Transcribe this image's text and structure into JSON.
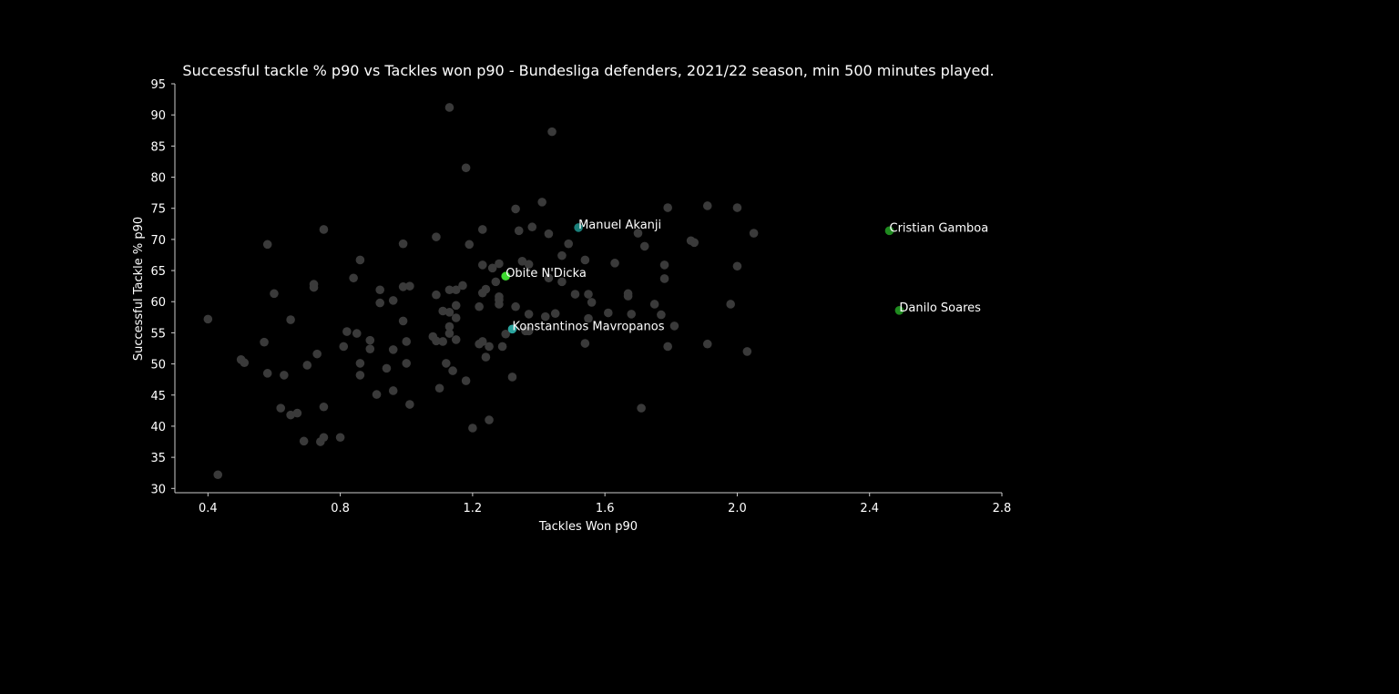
{
  "chart_data": {
    "type": "scatter",
    "title": "Successful tackle % p90 vs Tackles won p90 - Bundesliga defenders, 2021/22 season, min 500 minutes played.",
    "xlabel": "Tackles Won p90",
    "ylabel": "Successful Tackle % p90",
    "xlim": [
      0.3,
      2.8
    ],
    "ylim": [
      30,
      95
    ],
    "xticks": [
      "0.4",
      "0.8",
      "1.2",
      "1.6",
      "2.0",
      "2.4",
      "2.8"
    ],
    "yticks": [
      "30",
      "35",
      "40",
      "45",
      "50",
      "55",
      "60",
      "65",
      "70",
      "75",
      "80",
      "85",
      "90",
      "95"
    ],
    "grid": false,
    "colors": {
      "background": "#000000",
      "points": "#3a3a3a",
      "axis": "#cccccc",
      "text": "#ffffff"
    },
    "highlighted": [
      {
        "label": "Manuel Akanji",
        "x": 1.52,
        "y": 71.9,
        "color": "#1a7f7a"
      },
      {
        "label": "Obite N'Dicka",
        "x": 1.3,
        "y": 64.1,
        "color": "#3ddc2f"
      },
      {
        "label": "Konstantinos Mavropanos",
        "x": 1.32,
        "y": 55.6,
        "color": "#2aa39d"
      },
      {
        "label": "Cristian Gamboa",
        "x": 2.46,
        "y": 71.4,
        "color": "#1f8a1f"
      },
      {
        "label": "Danilo Soares",
        "x": 2.49,
        "y": 58.6,
        "color": "#1f8a1f"
      }
    ],
    "points": [
      [
        1.13,
        91.2
      ],
      [
        1.44,
        87.3
      ],
      [
        1.18,
        81.5
      ],
      [
        1.41,
        76.0
      ],
      [
        1.33,
        74.9
      ],
      [
        1.79,
        75.1
      ],
      [
        1.91,
        75.4
      ],
      [
        2.0,
        75.1
      ],
      [
        0.75,
        71.6
      ],
      [
        1.23,
        71.6
      ],
      [
        1.34,
        71.4
      ],
      [
        1.38,
        72.0
      ],
      [
        1.43,
        70.9
      ],
      [
        1.7,
        71.0
      ],
      [
        2.05,
        71.0
      ],
      [
        0.58,
        69.2
      ],
      [
        0.99,
        69.3
      ],
      [
        1.09,
        70.4
      ],
      [
        1.19,
        69.2
      ],
      [
        1.49,
        69.3
      ],
      [
        1.72,
        68.9
      ],
      [
        1.86,
        69.8
      ],
      [
        1.87,
        69.5
      ],
      [
        0.86,
        66.7
      ],
      [
        1.23,
        65.9
      ],
      [
        1.26,
        65.4
      ],
      [
        1.28,
        66.1
      ],
      [
        1.35,
        66.5
      ],
      [
        1.37,
        66.0
      ],
      [
        1.47,
        67.4
      ],
      [
        1.54,
        66.7
      ],
      [
        1.63,
        66.2
      ],
      [
        1.78,
        65.9
      ],
      [
        2.0,
        65.7
      ],
      [
        0.84,
        63.8
      ],
      [
        1.27,
        63.2
      ],
      [
        1.43,
        63.8
      ],
      [
        1.47,
        63.2
      ],
      [
        1.78,
        63.7
      ],
      [
        0.6,
        61.3
      ],
      [
        0.72,
        62.8
      ],
      [
        0.72,
        62.3
      ],
      [
        0.92,
        61.9
      ],
      [
        0.99,
        62.4
      ],
      [
        1.01,
        62.5
      ],
      [
        1.09,
        61.1
      ],
      [
        1.13,
        61.9
      ],
      [
        1.15,
        61.9
      ],
      [
        1.17,
        62.6
      ],
      [
        1.23,
        61.4
      ],
      [
        1.24,
        62.0
      ],
      [
        1.28,
        60.8
      ],
      [
        1.51,
        61.2
      ],
      [
        1.55,
        61.2
      ],
      [
        1.67,
        61.3
      ],
      [
        1.67,
        60.9
      ],
      [
        0.4,
        57.2
      ],
      [
        0.65,
        57.1
      ],
      [
        0.92,
        59.8
      ],
      [
        0.96,
        60.2
      ],
      [
        0.99,
        56.9
      ],
      [
        1.11,
        58.5
      ],
      [
        1.13,
        58.3
      ],
      [
        1.15,
        59.4
      ],
      [
        1.15,
        57.4
      ],
      [
        1.22,
        59.2
      ],
      [
        1.28,
        59.6
      ],
      [
        1.28,
        60.3
      ],
      [
        1.33,
        59.2
      ],
      [
        1.37,
        58.0
      ],
      [
        1.42,
        57.6
      ],
      [
        1.45,
        58.1
      ],
      [
        1.55,
        57.3
      ],
      [
        1.56,
        59.9
      ],
      [
        1.61,
        58.2
      ],
      [
        1.68,
        58.0
      ],
      [
        1.75,
        59.6
      ],
      [
        1.77,
        57.9
      ],
      [
        1.98,
        59.6
      ],
      [
        0.57,
        53.5
      ],
      [
        0.73,
        51.6
      ],
      [
        0.81,
        52.8
      ],
      [
        0.82,
        55.2
      ],
      [
        0.85,
        54.9
      ],
      [
        0.89,
        53.8
      ],
      [
        0.89,
        52.4
      ],
      [
        0.96,
        52.3
      ],
      [
        1.0,
        53.6
      ],
      [
        1.08,
        54.4
      ],
      [
        1.09,
        53.7
      ],
      [
        1.11,
        53.6
      ],
      [
        1.13,
        54.9
      ],
      [
        1.13,
        56.0
      ],
      [
        1.15,
        53.9
      ],
      [
        1.22,
        53.2
      ],
      [
        1.23,
        53.6
      ],
      [
        1.25,
        52.8
      ],
      [
        1.29,
        52.8
      ],
      [
        1.3,
        54.8
      ],
      [
        1.36,
        55.3
      ],
      [
        1.37,
        55.3
      ],
      [
        1.54,
        53.3
      ],
      [
        1.81,
        56.1
      ],
      [
        1.79,
        52.8
      ],
      [
        1.91,
        53.2
      ],
      [
        0.5,
        50.7
      ],
      [
        0.51,
        50.2
      ],
      [
        0.58,
        48.5
      ],
      [
        0.63,
        48.2
      ],
      [
        0.7,
        49.8
      ],
      [
        0.86,
        50.1
      ],
      [
        0.86,
        48.2
      ],
      [
        0.94,
        49.3
      ],
      [
        1.0,
        50.1
      ],
      [
        1.12,
        50.1
      ],
      [
        1.14,
        48.9
      ],
      [
        1.18,
        47.3
      ],
      [
        1.24,
        51.1
      ],
      [
        1.32,
        47.9
      ],
      [
        2.03,
        52.0
      ],
      [
        0.62,
        42.9
      ],
      [
        0.65,
        41.8
      ],
      [
        0.67,
        42.1
      ],
      [
        0.75,
        43.1
      ],
      [
        0.91,
        45.1
      ],
      [
        0.96,
        45.7
      ],
      [
        1.01,
        43.5
      ],
      [
        1.1,
        46.1
      ],
      [
        1.2,
        39.7
      ],
      [
        1.25,
        41.0
      ],
      [
        1.71,
        42.9
      ],
      [
        0.69,
        37.6
      ],
      [
        0.74,
        37.5
      ],
      [
        0.75,
        38.2
      ],
      [
        0.8,
        38.2
      ],
      [
        0.43,
        32.2
      ]
    ]
  }
}
